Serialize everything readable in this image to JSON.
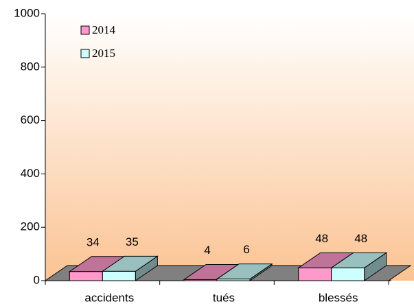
{
  "chart_data": {
    "type": "bar3d",
    "categories": [
      "accidents",
      "tués",
      "blessés"
    ],
    "series": [
      {
        "name": "2014",
        "color": "#ff99cc",
        "values": [
          34,
          4,
          48
        ]
      },
      {
        "name": "2015",
        "color": "#ccffff",
        "values": [
          35,
          6,
          48
        ]
      }
    ],
    "ylim": [
      0,
      1000
    ],
    "yticks": [
      0,
      200,
      400,
      600,
      800,
      1000
    ],
    "legend": "upper left"
  }
}
